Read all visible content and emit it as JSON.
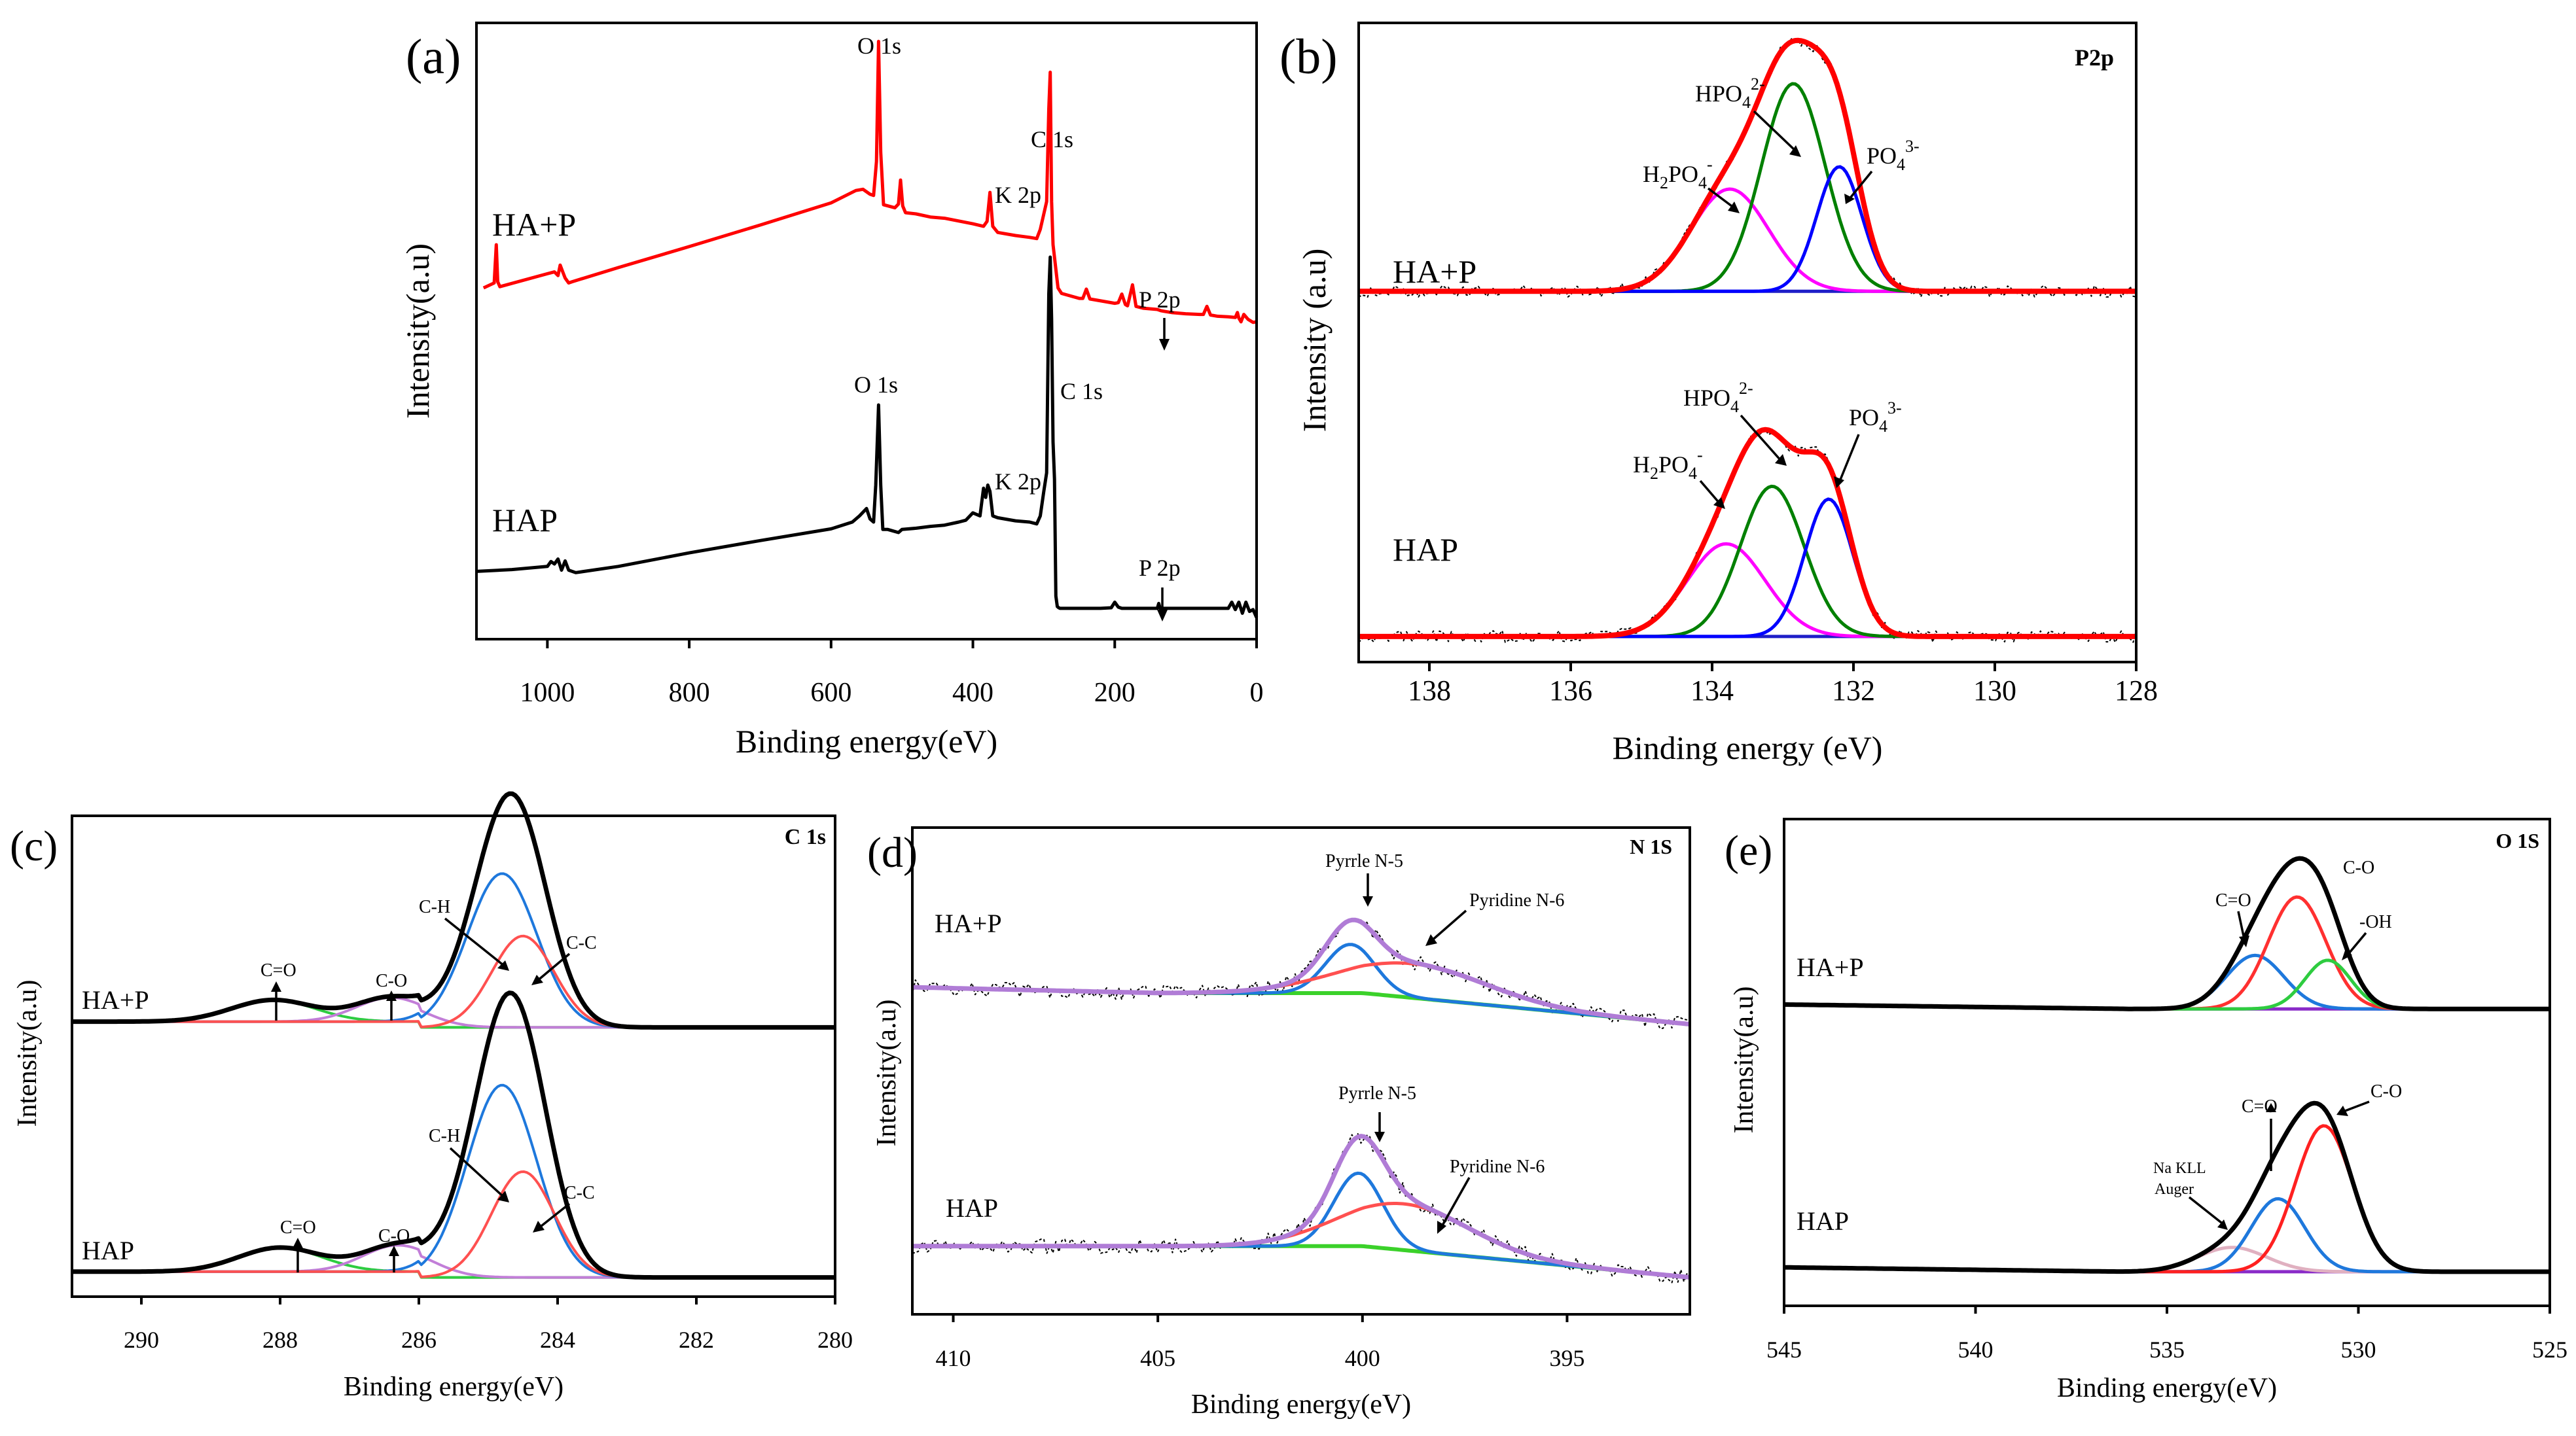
{
  "chart_data": [
    {
      "id": "a",
      "type": "line",
      "panel_label": "(a)",
      "xlabel": "Binding energy(eV)",
      "ylabel": "Intensity(a.u)",
      "xlim": [
        1100,
        0
      ],
      "x_ticks": [
        "1000",
        "800",
        "600",
        "400",
        "200",
        "0"
      ],
      "x_tick_values": [
        1000,
        800,
        600,
        400,
        200,
        0
      ],
      "ylim": [
        0,
        1
      ],
      "series": [
        {
          "name": "HA+P",
          "color": "#ff0000",
          "x": [
            1090,
            1075,
            1072,
            1070,
            1067,
            1000,
            990,
            985,
            982,
            978,
            975,
            970,
            965,
            900,
            800,
            700,
            600,
            565,
            555,
            545,
            540,
            536,
            533,
            530,
            526,
            510,
            505,
            502,
            499,
            495,
            480,
            460,
            440,
            400,
            385,
            380,
            376,
            372,
            365,
            340,
            320,
            310,
            305,
            300,
            296,
            293,
            291,
            289,
            287,
            285,
            282,
            280,
            275,
            250,
            245,
            240,
            235,
            225,
            200,
            195,
            190,
            185,
            182,
            180,
            175,
            170,
            160,
            140,
            135,
            130,
            120,
            100,
            80,
            75,
            70,
            65,
            55,
            40,
            30,
            27,
            25,
            22,
            18,
            12,
            5,
            0
          ],
          "y": [
            0.57,
            0.578,
            0.64,
            0.58,
            0.572,
            0.593,
            0.596,
            0.59,
            0.607,
            0.595,
            0.586,
            0.578,
            0.58,
            0.603,
            0.637,
            0.672,
            0.708,
            0.728,
            0.73,
            0.722,
            0.72,
            0.775,
            0.97,
            0.79,
            0.705,
            0.7,
            0.706,
            0.745,
            0.703,
            0.692,
            0.69,
            0.685,
            0.683,
            0.674,
            0.67,
            0.678,
            0.725,
            0.67,
            0.66,
            0.655,
            0.652,
            0.65,
            0.665,
            0.69,
            0.71,
            0.86,
            0.92,
            0.71,
            0.64,
            0.62,
            0.59,
            0.57,
            0.561,
            0.553,
            0.553,
            0.568,
            0.552,
            0.55,
            0.545,
            0.546,
            0.56,
            0.543,
            0.541,
            0.55,
            0.575,
            0.54,
            0.537,
            0.535,
            0.533,
            0.532,
            0.53,
            0.528,
            0.527,
            0.527,
            0.54,
            0.526,
            0.524,
            0.523,
            0.522,
            0.53,
            0.521,
            0.515,
            0.527,
            0.519,
            0.514,
            0.515
          ]
        },
        {
          "name": "HAP",
          "color": "#000000",
          "x": [
            1100,
            1050,
            1000,
            995,
            990,
            985,
            980,
            975,
            970,
            960,
            900,
            800,
            700,
            600,
            570,
            560,
            550,
            545,
            540,
            537,
            533,
            530,
            527,
            520,
            505,
            500,
            480,
            460,
            440,
            420,
            410,
            400,
            390,
            385,
            382,
            379,
            376,
            372,
            365,
            340,
            320,
            310,
            305,
            300,
            296,
            293,
            291,
            289,
            287,
            285,
            283,
            281,
            279,
            277,
            260,
            240,
            220,
            205,
            200,
            195,
            190,
            180,
            160,
            140,
            138,
            136,
            130,
            120,
            100,
            80,
            60,
            50,
            40,
            35,
            30,
            25,
            20,
            15,
            10,
            5,
            0
          ],
          "y": [
            0.11,
            0.113,
            0.118,
            0.126,
            0.122,
            0.13,
            0.112,
            0.127,
            0.112,
            0.108,
            0.118,
            0.14,
            0.16,
            0.179,
            0.19,
            0.2,
            0.212,
            0.195,
            0.19,
            0.25,
            0.38,
            0.25,
            0.178,
            0.178,
            0.173,
            0.178,
            0.18,
            0.183,
            0.185,
            0.19,
            0.193,
            0.205,
            0.2,
            0.245,
            0.23,
            0.25,
            0.24,
            0.2,
            0.197,
            0.192,
            0.19,
            0.187,
            0.2,
            0.24,
            0.27,
            0.56,
            0.62,
            0.52,
            0.32,
            0.26,
            0.07,
            0.053,
            0.051,
            0.05,
            0.05,
            0.05,
            0.05,
            0.051,
            0.06,
            0.052,
            0.05,
            0.05,
            0.05,
            0.05,
            0.058,
            0.05,
            0.05,
            0.05,
            0.05,
            0.05,
            0.05,
            0.05,
            0.05,
            0.06,
            0.048,
            0.06,
            0.042,
            0.06,
            0.045,
            0.048,
            0.035
          ]
        }
      ],
      "series_labels": [
        "HA+P",
        "HAP"
      ],
      "annotations": [
        "O 1s",
        "C 1s",
        "K 2p",
        "P 2p",
        "O 1s",
        "C 1s",
        "K 2p",
        "P 2p"
      ]
    },
    {
      "id": "b",
      "type": "line",
      "panel_label": "(b)",
      "corner_label": "P2p",
      "xlabel": "Binding energy (eV)",
      "ylabel": "Intensity (a.u)",
      "xlim": [
        139,
        128
      ],
      "x_ticks": [
        "138",
        "136",
        "134",
        "132",
        "130",
        "128"
      ],
      "x_tick_values": [
        138,
        136,
        134,
        132,
        130,
        128
      ],
      "ylim": [
        0,
        1
      ],
      "offsets": [
        0.58,
        0.04
      ],
      "baseline_range": [
        139,
        128
      ],
      "peaks_HA+P": [
        {
          "name": "H2PO4-",
          "center": 133.75,
          "height": 0.16,
          "sigma": 0.55,
          "color": "#ff00ff"
        },
        {
          "name": "HPO42-",
          "center": 132.85,
          "height": 0.325,
          "sigma": 0.45,
          "color": "#008000"
        },
        {
          "name": "PO43-",
          "center": 132.2,
          "height": 0.195,
          "sigma": 0.32,
          "color": "#0000ff"
        }
      ],
      "peaks_HAP": [
        {
          "name": "H2PO4-",
          "center": 133.8,
          "height": 0.145,
          "sigma": 0.55,
          "color": "#ff00ff"
        },
        {
          "name": "HPO42-",
          "center": 133.15,
          "height": 0.235,
          "sigma": 0.45,
          "color": "#008000"
        },
        {
          "name": "PO43-",
          "center": 132.35,
          "height": 0.215,
          "sigma": 0.34,
          "color": "#0000ff"
        }
      ],
      "envelope_color": "#ff0000",
      "series_labels": [
        "HA+P",
        "HAP"
      ],
      "annotations": [
        {
          "base": "HPO",
          "sub": "4",
          "sup": "2-"
        },
        {
          "base": "H",
          "sub": "2",
          "base2": "PO",
          "sub2": "4",
          "sup": "-"
        },
        {
          "base": "PO",
          "sub": "4",
          "sup": "3-"
        },
        {
          "base": "HPO",
          "sub": "4",
          "sup": "2-"
        },
        {
          "base": "H",
          "sub": "2",
          "base2": "PO",
          "sub2": "4",
          "sup": "-"
        },
        {
          "base": "PO",
          "sub": "4",
          "sup": "3-"
        }
      ]
    },
    {
      "id": "c",
      "type": "line",
      "panel_label": "(c)",
      "corner_label": "C 1s",
      "xlabel": "Binding energy(eV)",
      "ylabel": "Intensity(a.u)",
      "xlim": [
        291,
        280
      ],
      "x_ticks": [
        "290",
        "288",
        "286",
        "284",
        "282",
        "280"
      ],
      "x_tick_values": [
        290,
        288,
        286,
        284,
        282,
        280
      ],
      "ylim": [
        0,
        1
      ],
      "offsets": [
        0.56,
        0.04
      ],
      "peaks_HA+P": [
        {
          "name": "C=O",
          "center": 288.1,
          "height": 0.045,
          "sigma": 0.6,
          "color": "#2ecc40"
        },
        {
          "name": "C-O",
          "center": 286.4,
          "height": 0.05,
          "sigma": 0.5,
          "color": "#c27ed8"
        },
        {
          "name": "C-H",
          "center": 284.8,
          "height": 0.32,
          "sigma": 0.5,
          "color": "#1e78dc"
        },
        {
          "name": "C-C",
          "center": 284.5,
          "height": 0.19,
          "sigma": 0.45,
          "color": "#ff5050"
        }
      ],
      "peaks_HAP": [
        {
          "name": "C=O",
          "center": 288.0,
          "height": 0.05,
          "sigma": 0.6,
          "color": "#2ecc40"
        },
        {
          "name": "C-O",
          "center": 286.3,
          "height": 0.055,
          "sigma": 0.5,
          "color": "#c27ed8"
        },
        {
          "name": "C-H",
          "center": 284.8,
          "height": 0.4,
          "sigma": 0.5,
          "color": "#1e78dc"
        },
        {
          "name": "C-C",
          "center": 284.5,
          "height": 0.22,
          "sigma": 0.45,
          "color": "#ff5050"
        }
      ],
      "envelope_color": "#000000",
      "series_labels": [
        "HA+P",
        "HAP"
      ],
      "annotations": [
        "C-H",
        "C-C",
        "C=O",
        "C-O",
        "C-H",
        "C-C",
        "C=O",
        "C-O"
      ]
    },
    {
      "id": "d",
      "type": "line",
      "panel_label": "(d)",
      "corner_label": "N 1S",
      "xlabel": "Binding energy(eV)",
      "ylabel": "Intensity(a.u)",
      "xlim": [
        411,
        392
      ],
      "x_ticks": [
        "410",
        "405",
        "400",
        "395"
      ],
      "x_tick_values": [
        410,
        405,
        400,
        395
      ],
      "ylim": [
        0,
        1
      ],
      "offsets": [
        0.6,
        0.08
      ],
      "peaks_HA+P": [
        {
          "name": "Pyrrle N-5",
          "center": 400.3,
          "height": 0.1,
          "sigma": 0.6,
          "color": "#1e78dc"
        },
        {
          "name": "Pyridine N-6",
          "center": 398.8,
          "height": 0.07,
          "sigma": 1.8,
          "color": "#ff5050"
        }
      ],
      "peaks_HAP": [
        {
          "name": "Pyrrle N-5",
          "center": 400.1,
          "height": 0.15,
          "sigma": 0.6,
          "color": "#1e78dc"
        },
        {
          "name": "Pyridine N-6",
          "center": 399.0,
          "height": 0.095,
          "sigma": 1.6,
          "color": "#ff5050"
        }
      ],
      "envelope_color": "#b07cd6",
      "background_color": "#3bd12a",
      "series_labels": [
        "HA+P",
        "HAP"
      ],
      "annotations": [
        "Pyrrle N-5",
        "Pyridine N-6",
        "Pyrrle N-5",
        "Pyridine N-6"
      ]
    },
    {
      "id": "e",
      "type": "line",
      "panel_label": "(e)",
      "corner_label": "O 1S",
      "xlabel": "Binding energy(eV)",
      "ylabel": "Intensity(a.u)",
      "xlim": [
        545,
        525
      ],
      "x_ticks": [
        "545",
        "540",
        "535",
        "530",
        "525"
      ],
      "x_tick_values": [
        545,
        540,
        535,
        530,
        525
      ],
      "ylim": [
        0,
        1
      ],
      "offsets": [
        0.6,
        0.06
      ],
      "peaks_HA+P": [
        {
          "name": "C=O",
          "center": 532.7,
          "height": 0.11,
          "sigma": 0.75,
          "color": "#1e78dc"
        },
        {
          "name": "C-O",
          "center": 531.6,
          "height": 0.23,
          "sigma": 0.75,
          "color": "#ff3030"
        },
        {
          "name": "-OH",
          "center": 530.8,
          "height": 0.1,
          "sigma": 0.6,
          "color": "#2ecc40"
        }
      ],
      "peaks_HAP": [
        {
          "name": "Na KLL Auger",
          "center": 533.3,
          "height": 0.05,
          "sigma": 0.9,
          "color": "#e0b0c0"
        },
        {
          "name": "C=O",
          "center": 532.1,
          "height": 0.15,
          "sigma": 0.7,
          "color": "#1e78dc"
        },
        {
          "name": "C-O",
          "center": 530.9,
          "height": 0.3,
          "sigma": 0.75,
          "color": "#ff2020"
        }
      ],
      "envelope_color": "#000000",
      "series_labels": [
        "HA+P",
        "HAP"
      ],
      "annotations": [
        "C=O",
        "C-O",
        "-OH",
        "C=O",
        "C-O",
        "Na KLL",
        "Auger"
      ]
    }
  ]
}
